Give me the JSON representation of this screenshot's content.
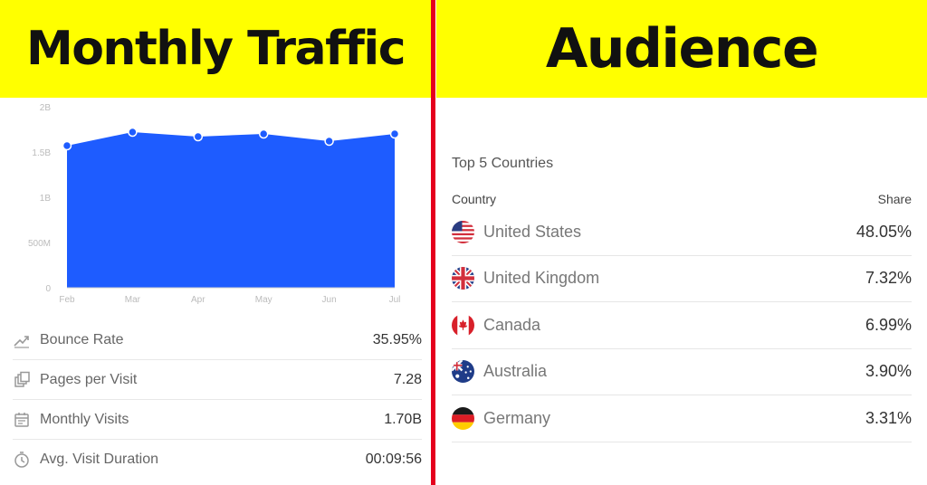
{
  "left_banner": {
    "title": "Monthly Traffic"
  },
  "right_banner": {
    "title": "Audience"
  },
  "chart_data": {
    "type": "area",
    "categories": [
      "Feb",
      "Mar",
      "Apr",
      "May",
      "Jun",
      "Jul"
    ],
    "values": [
      1.57,
      1.72,
      1.67,
      1.7,
      1.62,
      1.7
    ],
    "y_tick_labels": [
      "0",
      "500M",
      "1B",
      "1.5B",
      "2B"
    ],
    "y_ticks": [
      0,
      0.5,
      1,
      1.5,
      2
    ],
    "ylim": [
      0,
      2
    ],
    "unit": "B",
    "color": "#1e5cff",
    "grid": false
  },
  "metrics": [
    {
      "icon": "trend-up-icon",
      "label": "Bounce Rate",
      "value": "35.95%"
    },
    {
      "icon": "pages-icon",
      "label": "Pages per Visit",
      "value": "7.28"
    },
    {
      "icon": "calendar-icon",
      "label": "Monthly Visits",
      "value": "1.70B"
    },
    {
      "icon": "clock-icon",
      "label": "Avg. Visit Duration",
      "value": "00:09:56"
    }
  ],
  "audience": {
    "section_title": "Top 5 Countries",
    "column_country": "Country",
    "column_share": "Share",
    "countries": [
      {
        "flag": "us-flag-icon",
        "name": "United States",
        "share": "48.05%"
      },
      {
        "flag": "uk-flag-icon",
        "name": "United Kingdom",
        "share": "7.32%"
      },
      {
        "flag": "canada-flag-icon",
        "name": "Canada",
        "share": "6.99%"
      },
      {
        "flag": "australia-flag-icon",
        "name": "Australia",
        "share": "3.90%"
      },
      {
        "flag": "germany-flag-icon",
        "name": "Germany",
        "share": "3.31%"
      }
    ]
  },
  "colors": {
    "banner": "#ffff00",
    "divider": "#e5001d",
    "chart_fill": "#1e5cff"
  }
}
